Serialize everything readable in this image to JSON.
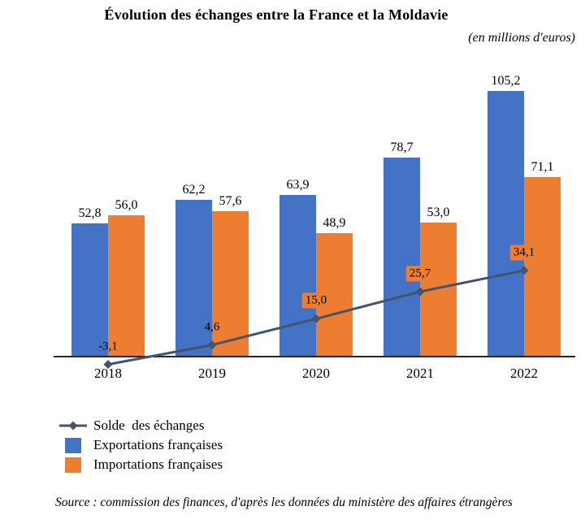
{
  "title": "Évolution des échanges entre la France et la Moldavie",
  "subtitle": "(en millions d'euros)",
  "source_note": "Source : commission des finances, d'après les données du ministère des affaires étrangères",
  "colors": {
    "exports_blue": "#4472C4",
    "imports_orange": "#ED7D31",
    "balance_line": "#44546A",
    "axis": "#262626",
    "balance_label_fill": "#ED7D31",
    "text": "#000000"
  },
  "legend": {
    "items": [
      {
        "label": "Solde  des échanges",
        "marker": "line-diamond"
      },
      {
        "label": "Exportations françaises",
        "marker": "blue-swatch"
      },
      {
        "label": "Importations françaises",
        "marker": "orange-swatch"
      }
    ]
  },
  "chart_data": {
    "type": "bar",
    "categories": [
      "2018",
      "2019",
      "2020",
      "2021",
      "2022"
    ],
    "series": [
      {
        "name": "Exportations françaises",
        "type": "bar",
        "color": "#4472C4",
        "values": [
          52.8,
          62.2,
          63.9,
          78.7,
          105.2
        ],
        "labels": [
          "52,8",
          "62,2",
          "63,9",
          "78,7",
          "105,2"
        ]
      },
      {
        "name": "Importations françaises",
        "type": "bar",
        "color": "#ED7D31",
        "values": [
          56.0,
          57.6,
          48.9,
          53.0,
          71.1
        ],
        "labels": [
          "56,0",
          "57,6",
          "48,9",
          "53,0",
          "71,1"
        ]
      },
      {
        "name": "Solde des échanges",
        "type": "line",
        "color": "#44546A",
        "values": [
          -3.1,
          4.6,
          15.0,
          25.7,
          34.1
        ],
        "labels": [
          "-3,1",
          "4,6",
          "15,0",
          "25,7",
          "34,1"
        ],
        "label_has_fill": [
          false,
          false,
          true,
          true,
          true
        ]
      }
    ],
    "title": "Évolution des échanges entre la France et la Moldavie",
    "ylabel": "en millions d'euros",
    "xlabel": "",
    "ylim": [
      -10,
      115
    ],
    "grid": false,
    "legend_position": "bottom-left"
  }
}
